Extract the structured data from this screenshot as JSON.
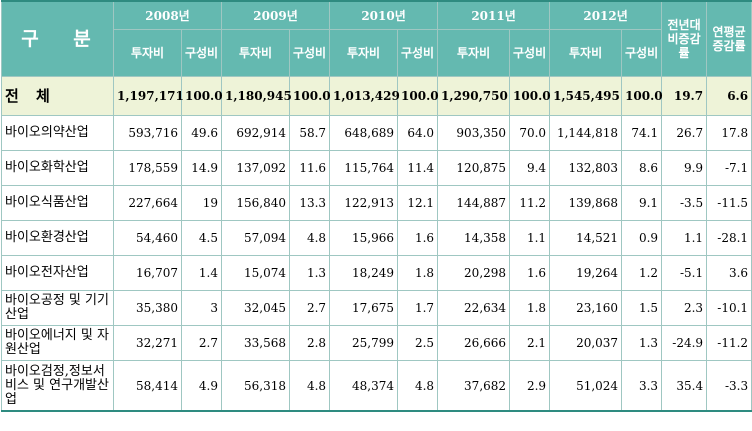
{
  "header": {
    "category": "구 분",
    "years": [
      "2008년",
      "2009년",
      "2010년",
      "2011년",
      "2012년"
    ],
    "yoy": "전년대비증감률",
    "cagr": "연평균증감률",
    "invest": "투자비",
    "share": "구성비"
  },
  "rows": [
    {
      "label": "전 체",
      "v": [
        "1,197,171",
        "100.0",
        "1,180,945",
        "100.0",
        "1,013,429",
        "100.0",
        "1,290,750",
        "100.0",
        "1,545,495",
        "100.0",
        "19.7",
        "6.6"
      ]
    },
    {
      "label": "바이오의약산업",
      "v": [
        "593,716",
        "49.6",
        "692,914",
        "58.7",
        "648,689",
        "64.0",
        "903,350",
        "70.0",
        "1,144,818",
        "74.1",
        "26.7",
        "17.8"
      ]
    },
    {
      "label": "바이오화학산업",
      "v": [
        "178,559",
        "14.9",
        "137,092",
        "11.6",
        "115,764",
        "11.4",
        "120,875",
        "9.4",
        "132,803",
        "8.6",
        "9.9",
        "-7.1"
      ]
    },
    {
      "label": "바이오식품산업",
      "v": [
        "227,664",
        "19",
        "156,840",
        "13.3",
        "122,913",
        "12.1",
        "144,887",
        "11.2",
        "139,868",
        "9.1",
        "-3.5",
        "-11.5"
      ]
    },
    {
      "label": "바이오환경산업",
      "v": [
        "54,460",
        "4.5",
        "57,094",
        "4.8",
        "15,966",
        "1.6",
        "14,358",
        "1.1",
        "14,521",
        "0.9",
        "1.1",
        "-28.1"
      ]
    },
    {
      "label": "바이오전자산업",
      "v": [
        "16,707",
        "1.4",
        "15,074",
        "1.3",
        "18,249",
        "1.8",
        "20,298",
        "1.6",
        "19,264",
        "1.2",
        "-5.1",
        "3.6"
      ]
    },
    {
      "label": "바이오공정 및 기기산업",
      "v": [
        "35,380",
        "3",
        "32,045",
        "2.7",
        "17,675",
        "1.7",
        "22,634",
        "1.8",
        "23,160",
        "1.5",
        "2.3",
        "-10.1"
      ]
    },
    {
      "label": "바이오에너지 및 자원산업",
      "v": [
        "32,271",
        "2.7",
        "33,568",
        "2.8",
        "25,799",
        "2.5",
        "26,666",
        "2.1",
        "20,037",
        "1.3",
        "-24.9",
        "-11.2"
      ]
    },
    {
      "label": "바이오검정,정보서비스 및 연구개발산업",
      "v": [
        "58,414",
        "4.9",
        "56,318",
        "4.8",
        "48,374",
        "4.8",
        "37,682",
        "2.9",
        "51,024",
        "3.3",
        "35.4",
        "-3.3"
      ]
    }
  ]
}
